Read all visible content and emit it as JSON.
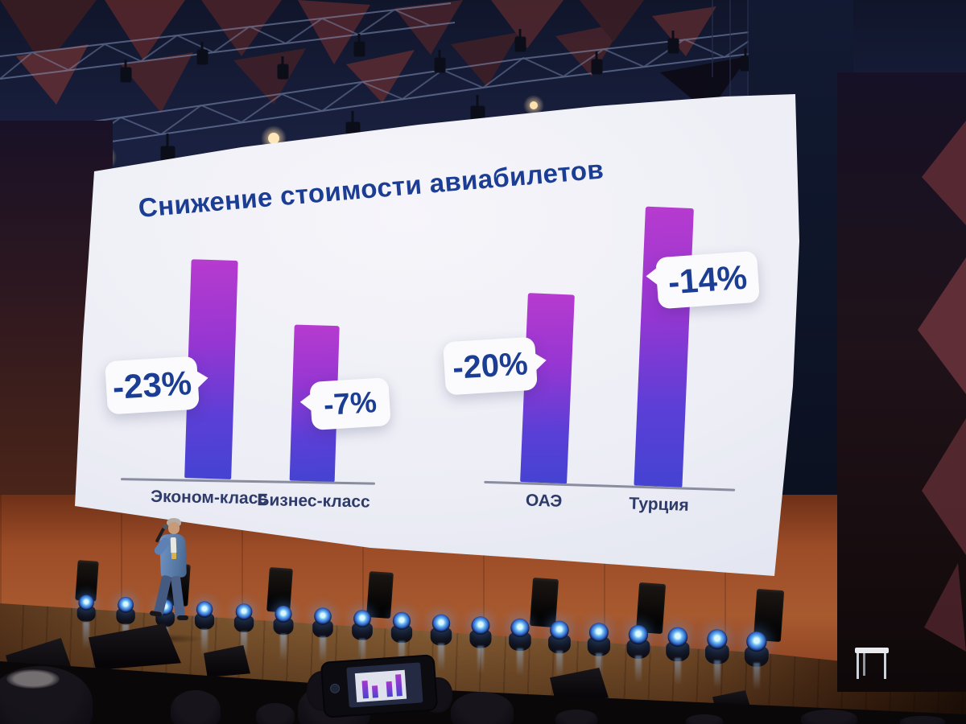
{
  "chart_data": {
    "type": "bar",
    "title": "Снижение стоимости авиабилетов",
    "unit": "%",
    "groups": [
      {
        "categories": [
          "Эконом-класс",
          "Бизнес-класс"
        ],
        "values": [
          -23,
          -7
        ],
        "data_labels": [
          "-23%",
          "-7%"
        ]
      },
      {
        "categories": [
          "ОАЭ",
          "Турция"
        ],
        "values": [
          -20,
          -14
        ],
        "data_labels": [
          "-20%",
          "-14%"
        ]
      }
    ],
    "legend": "none",
    "axes": "category baseline only, no value axis",
    "bar_gradient": [
      "#b73bcf",
      "#4443d2"
    ],
    "title_color": "#1c3d94",
    "callout_text_color": "#1c3d94",
    "slide_background": "#ecedf5"
  },
  "scene": {
    "description_colors": {
      "stage_wall": "#9c4c27",
      "moving_light_glow": "#6ab8f0",
      "ceiling": "#1a2140",
      "presenter_suit": "#5f82b5"
    }
  }
}
